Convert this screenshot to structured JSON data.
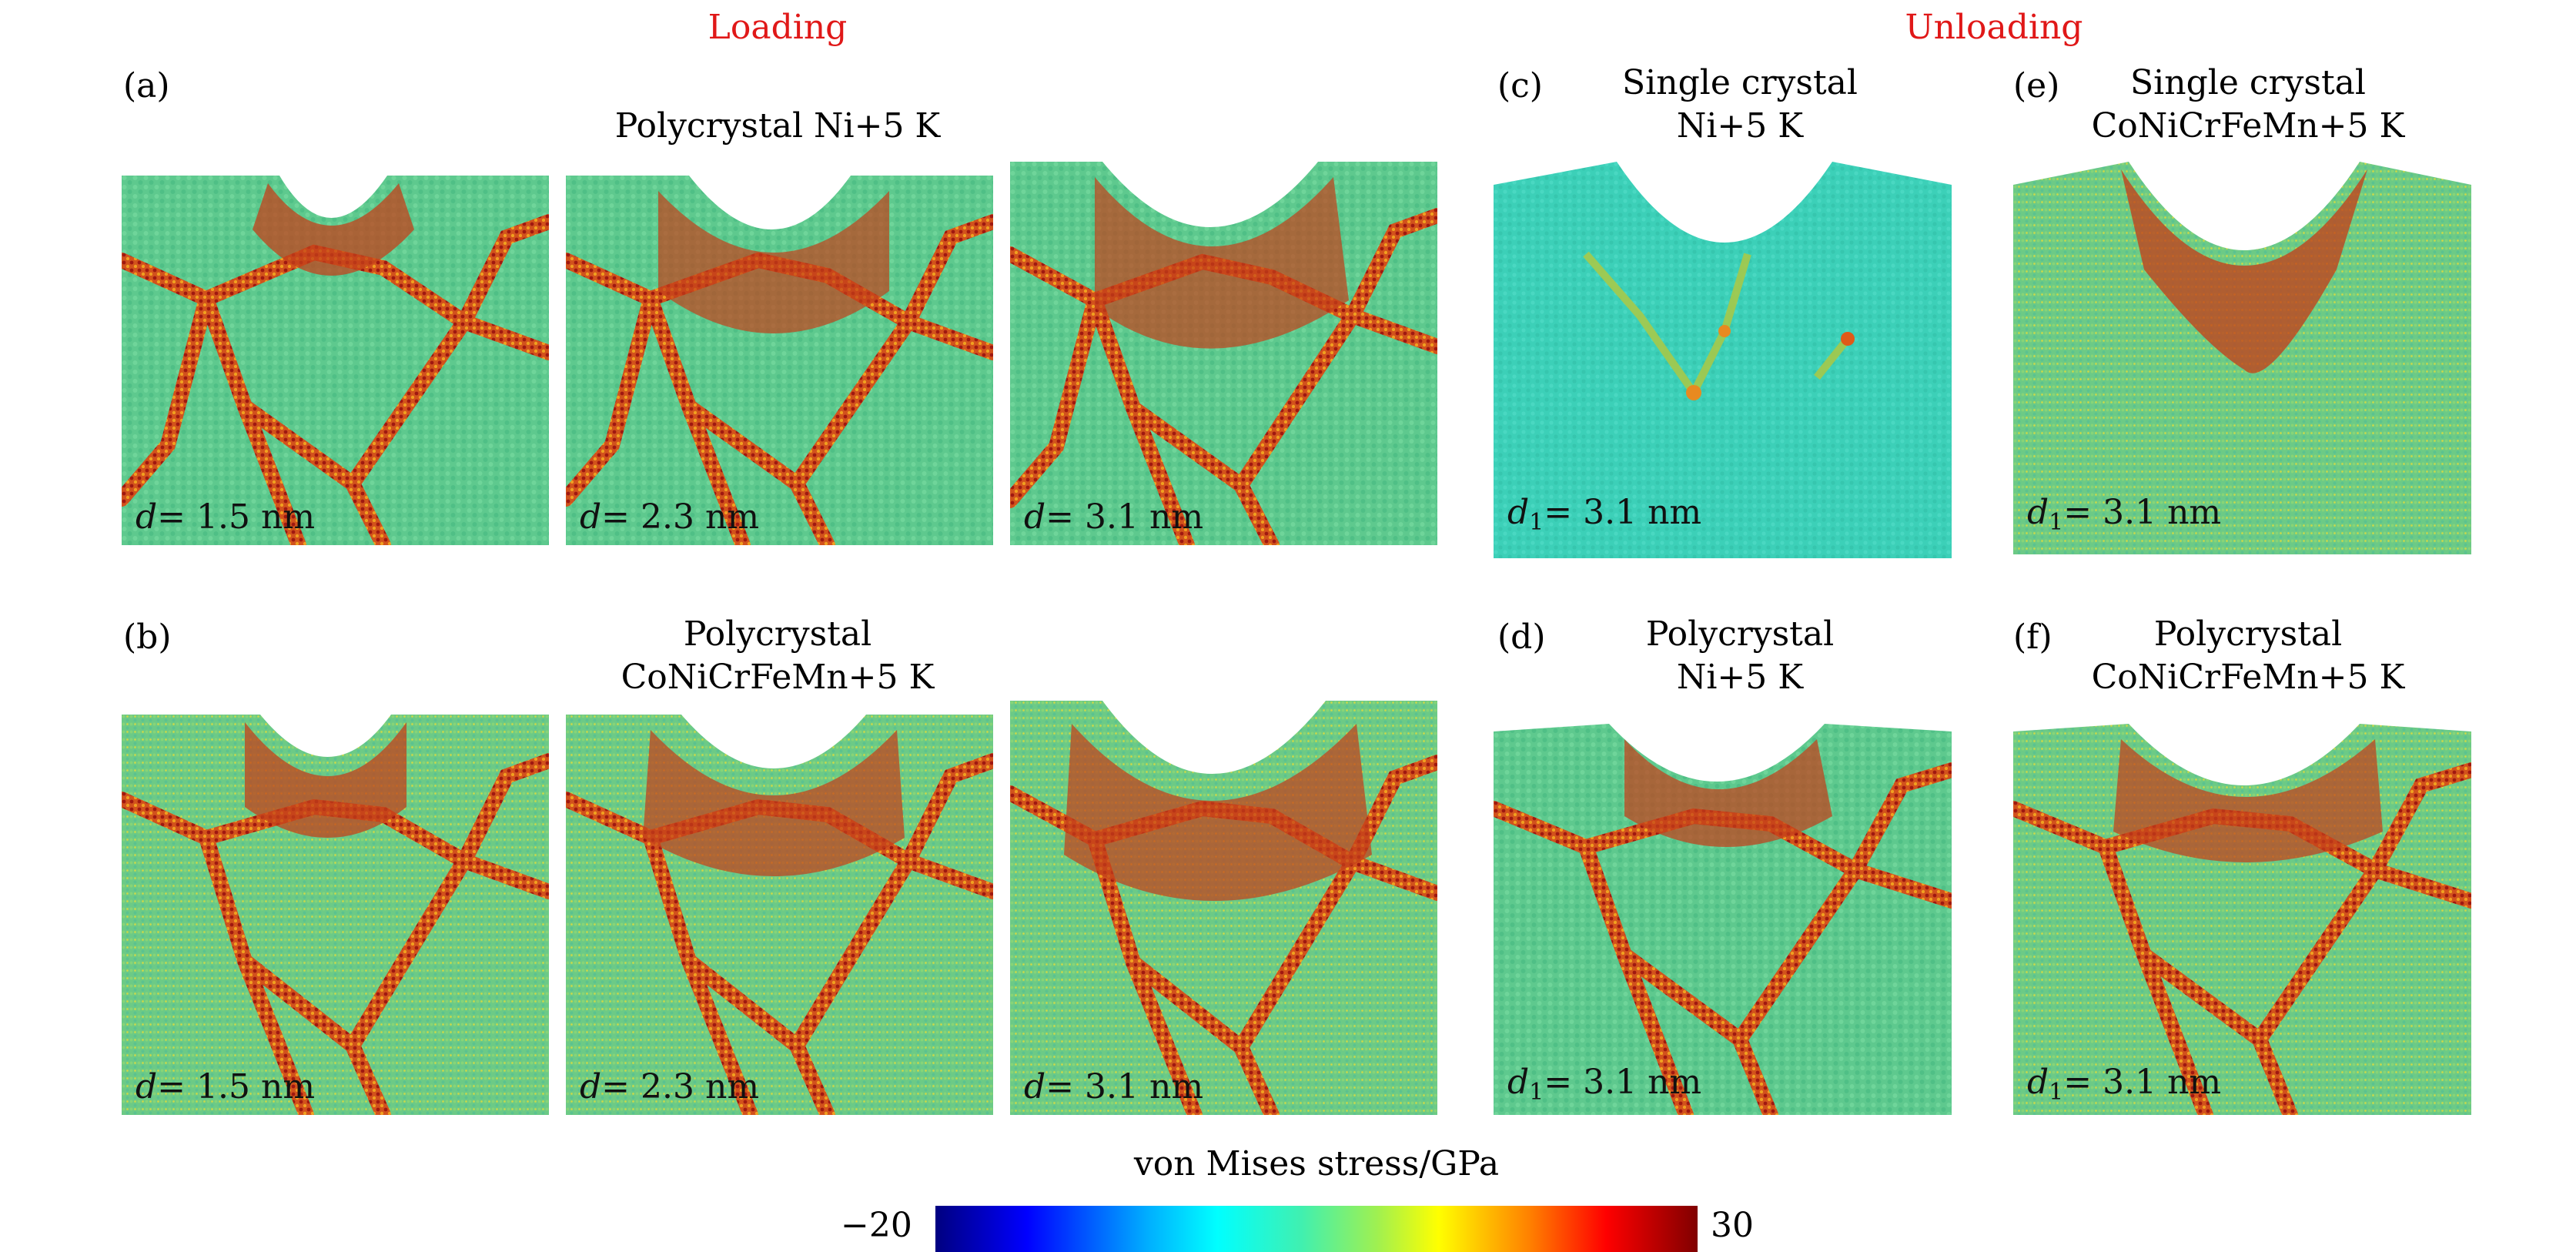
{
  "headers": {
    "loading": "Loading",
    "unloading": "Unloading"
  },
  "panels": {
    "a": {
      "label": "(a)",
      "title": "Polycrystal Ni+5 K"
    },
    "b": {
      "label": "(b)",
      "title_line1": "Polycrystal",
      "title_line2": "CoNiCrFeMn+5 K"
    },
    "c": {
      "label": "(c)",
      "title_line1": "Single crystal",
      "title_line2": "Ni+5 K"
    },
    "d": {
      "label": "(d)",
      "title_line1": "Polycrystal",
      "title_line2": "Ni+5 K"
    },
    "e": {
      "label": "(e)",
      "title_line1": "Single crystal",
      "title_line2": "CoNiCrFeMn+5 K"
    },
    "f": {
      "label": "(f)",
      "title_line1": "Polycrystal",
      "title_line2": "CoNiCrFeMn+5 K"
    }
  },
  "depth_labels": {
    "d1": "= 1.5 nm",
    "d2": "= 2.3 nm",
    "d3": "= 3.1 nm",
    "u": "= 3.1 nm"
  },
  "colorbar": {
    "title": "von Mises stress/GPa",
    "min": "−20",
    "max": "30"
  },
  "colors": {
    "heading_red": "#e01818",
    "grain_green": "#5ec98e",
    "boundary_red": "#c2401a",
    "single_crystal_cyan": "#3cd0b8"
  }
}
